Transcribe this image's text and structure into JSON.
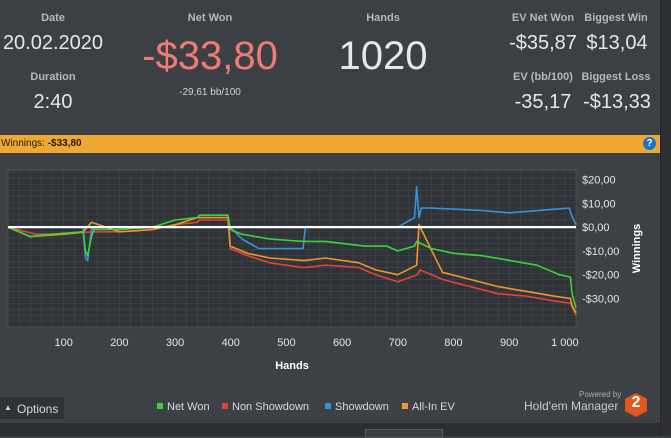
{
  "stats": {
    "date_label": "Date",
    "date_value": "20.02.2020",
    "duration_label": "Duration",
    "duration_value": "2:40",
    "net_won_label": "Net Won",
    "net_won_value": "-$33,80",
    "net_won_sub": "-29,61 bb/100",
    "hands_label": "Hands",
    "hands_value": "1020",
    "ev_net_won_label": "EV Net Won",
    "ev_net_won_value": "-$35,87",
    "biggest_win_label": "Biggest Win",
    "biggest_win_value": "$13,04",
    "ev_bb_label": "EV (bb/100)",
    "ev_bb_value": "-35,17",
    "biggest_loss_label": "Biggest Loss",
    "biggest_loss_value": "-$13,33"
  },
  "bar": {
    "winnings_label": "Winnings:",
    "winnings_value": "-$33,80",
    "help_glyph": "?"
  },
  "options": {
    "arrow_glyph": "▲",
    "label": "Options"
  },
  "brand": {
    "powered_by": "Powered by",
    "name": "Hold'em Manager",
    "version": "2"
  },
  "colors": {
    "net_won": "#3bd33b",
    "non_showdown": "#e0453a",
    "showdown": "#3593d8",
    "all_in_ev": "#f0962b",
    "zero_line": "#ffffff",
    "net_won_value": "#f07b74",
    "banner": "#f0a832",
    "brand_badge": "#e2581f"
  },
  "chart_data": {
    "type": "line",
    "xlabel": "Hands",
    "ylabel": "Winnings",
    "xlim": [
      0,
      1020
    ],
    "ylim": [
      -42,
      24
    ],
    "x_ticks": [
      100,
      200,
      300,
      400,
      500,
      600,
      700,
      800,
      900,
      1000
    ],
    "x_tick_labels": [
      "100",
      "200",
      "300",
      "400",
      "500",
      "600",
      "700",
      "800",
      "900",
      "1 000"
    ],
    "y_ticks": [
      20,
      10,
      0,
      -10,
      -20,
      -30
    ],
    "y_tick_labels": [
      "$20,00",
      "$10,00",
      "$0,00",
      "-$10,00",
      "-$20,00",
      "-$30,00"
    ],
    "grid": true,
    "zero_line": true,
    "legend_position": "bottom",
    "series": [
      {
        "name": "Net Won",
        "x": [
          0,
          40,
          80,
          135,
          139,
          143,
          150,
          154,
          200,
          260,
          300,
          340,
          344,
          395,
          399,
          420,
          470,
          530,
          534,
          570,
          640,
          680,
          700,
          730,
          734,
          760,
          800,
          850,
          900,
          950,
          990,
          1010,
          1013,
          1020
        ],
        "y": [
          0,
          -4,
          -3,
          -2,
          -10,
          -12,
          -4,
          -1,
          -1,
          0,
          3,
          4,
          5,
          5,
          -1,
          -3,
          -5,
          -6,
          -6,
          -6,
          -8,
          -8,
          -10,
          -8,
          -6,
          -9,
          -11,
          -12,
          -14,
          -16,
          -20,
          -21,
          -28,
          -34
        ]
      },
      {
        "name": "Non Showdown",
        "x": [
          0,
          50,
          100,
          150,
          200,
          260,
          300,
          340,
          344,
          395,
          399,
          430,
          470,
          530,
          534,
          570,
          630,
          660,
          700,
          735,
          740,
          780,
          830,
          880,
          930,
          980,
          1010,
          1020
        ],
        "y": [
          0,
          -3,
          -3,
          -2,
          -2,
          -1,
          1,
          2,
          3,
          3,
          -9,
          -12,
          -15,
          -17,
          -17,
          -16,
          -17,
          -20,
          -23,
          -20,
          -18,
          -22,
          -25,
          -28,
          -29,
          -31,
          -32,
          -37
        ]
      },
      {
        "name": "Showdown",
        "x": [
          0,
          135,
          139,
          143,
          150,
          154,
          200,
          300,
          340,
          395,
          399,
          420,
          450,
          530,
          534,
          570,
          700,
          730,
          734,
          738,
          742,
          760,
          850,
          900,
          1008,
          1012,
          1020
        ],
        "y": [
          0,
          0,
          -13,
          -14,
          -1,
          0,
          0,
          0,
          0,
          0,
          0,
          -5,
          -9,
          -9,
          0,
          0,
          0,
          4,
          17,
          4,
          8,
          8,
          7,
          6,
          8,
          5,
          1
        ]
      },
      {
        "name": "All-In EV",
        "x": [
          0,
          40,
          100,
          135,
          150,
          200,
          260,
          300,
          340,
          344,
          395,
          399,
          430,
          470,
          530,
          534,
          570,
          630,
          660,
          700,
          734,
          738,
          780,
          830,
          880,
          930,
          980,
          1010,
          1013,
          1020
        ],
        "y": [
          0,
          -4,
          -3,
          -2,
          2,
          -2,
          -1,
          1,
          4,
          4,
          4,
          -8,
          -11,
          -13,
          -14,
          -14,
          -13,
          -15,
          -18,
          -20,
          -16,
          1,
          -19,
          -22,
          -25,
          -27,
          -29,
          -30,
          -33,
          -36
        ]
      }
    ]
  }
}
